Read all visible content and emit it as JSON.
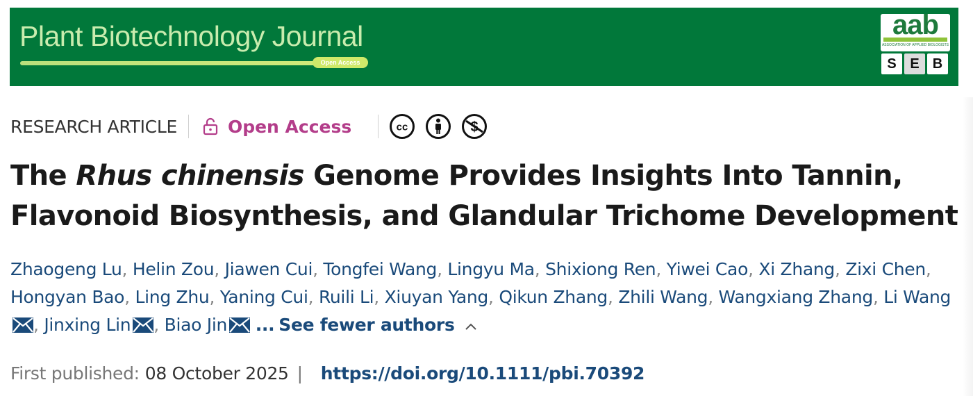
{
  "banner": {
    "journal_name": "Plant Biotechnology Journal",
    "open_access_tag": "Open Access",
    "aab_logo_text": "aab",
    "aab_logo_subtitle": "ASSOCIATION OF APPLIED BIOLOGISTS",
    "seb_letters": [
      "S",
      "E",
      "B"
    ],
    "colors": {
      "banner_bg": "#01783a",
      "journal_text": "#c9ecae"
    }
  },
  "meta": {
    "article_type": "RESEARCH ARTICLE",
    "access_label": "Open Access",
    "license_icons": [
      "cc-icon",
      "by-attribution-icon",
      "non-commercial-icon"
    ]
  },
  "title": {
    "prefix": "The ",
    "species": "Rhus chinensis",
    "rest": " Genome Provides Insights Into Tannin, Flavonoid Biosynthesis, and Glandular Trichome Development"
  },
  "authors": {
    "names": [
      "Zhaogeng Lu",
      "Helin Zou",
      "Jiawen Cui",
      "Tongfei Wang",
      "Lingyu Ma",
      "Shixiong Ren",
      "Yiwei Cao",
      "Xi Zhang",
      "Zixi Chen",
      "Hongyan Bao",
      "Ling Zhu",
      "Yaning Cui",
      "Ruili Li",
      "Xiuyan Yang",
      "Qikun Zhang",
      "Zhili Wang",
      "Wangxiang Zhang"
    ],
    "corresponding": [
      "Li Wang",
      "Jinxing Lin",
      "Biao Jin"
    ],
    "separator": ",",
    "ellipsis": "...",
    "toggle_label": "See fewer authors"
  },
  "publication": {
    "first_published_label": "First published:",
    "date": "08 October 2025",
    "divider": "|",
    "doi": "https://doi.org/10.1111/pbi.70392"
  },
  "colors": {
    "link": "#1a4a7a",
    "open_access": "#b33d8a"
  }
}
